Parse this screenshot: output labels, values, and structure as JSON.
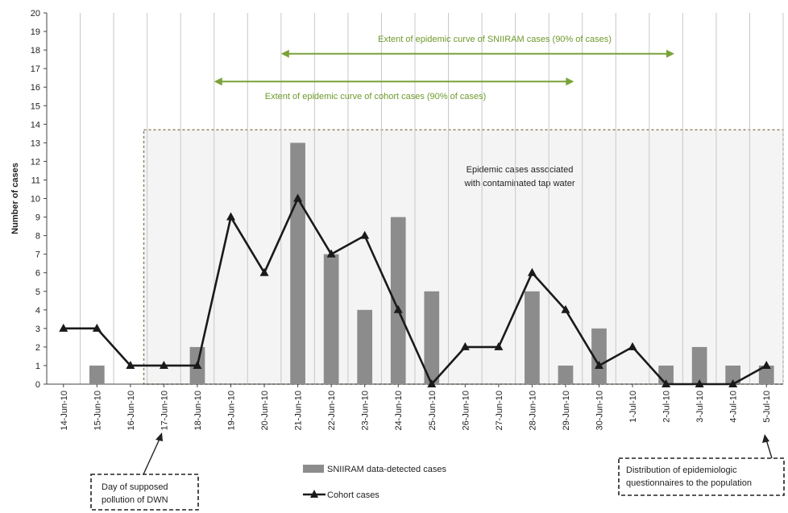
{
  "chart_data": {
    "type": "bar",
    "ylabel": "Number of cases",
    "ylim": [
      0,
      20
    ],
    "yticks": [
      "0",
      "1",
      "2",
      "3",
      "4",
      "5",
      "6",
      "7",
      "8",
      "9",
      "10",
      "11",
      "12",
      "13",
      "14",
      "15",
      "16",
      "17",
      "18",
      "19",
      "20"
    ],
    "categories": [
      "14-Jun-10",
      "15-Jun-10",
      "16-Jun-10",
      "17-Jun-10",
      "18-Jun-10",
      "19-Jun-10",
      "20-Jun-10",
      "21-Jun-10",
      "22-Jun-10",
      "23-Jun-10",
      "24-Jun-10",
      "25-Jun-10",
      "26-Jun-10",
      "27-Jun-10",
      "28-Jun-10",
      "29-Jun-10",
      "30-Jun-10",
      "1-Jul-10",
      "2-Jul-10",
      "3-Jul-10",
      "4-Jul-10",
      "5-Jul-10"
    ],
    "grid": "vertical",
    "series": [
      {
        "name": "SNIIRAM data-detected cases",
        "kind": "bar",
        "color": "#8c8c8c",
        "values": [
          0,
          1,
          0,
          0,
          2,
          0,
          0,
          13,
          7,
          4,
          9,
          5,
          0,
          0,
          5,
          1,
          3,
          0,
          1,
          2,
          1,
          1
        ]
      },
      {
        "name": "Cohort cases",
        "kind": "line",
        "color": "#1a1a1a",
        "values": [
          3,
          3,
          1,
          1,
          1,
          9,
          6,
          10,
          7,
          8,
          4,
          0,
          2,
          2,
          6,
          4,
          1,
          2,
          0,
          0,
          0,
          1
        ]
      }
    ],
    "ranges": [
      {
        "label": "Extent of epidemic curve of SNIIRAM cases (90% of cases)",
        "from": "20-Jun-10",
        "to": "2-Jul-10",
        "y": 17.8,
        "color": "#7aa23a"
      },
      {
        "label": "Extent of epidemic curve of cohort cases (90% of cases)",
        "from": "18-Jun-10",
        "to": "29-Jun-10",
        "y": 16.3,
        "color": "#7aa23a"
      }
    ],
    "region": {
      "label_line1": "Epidemic cases associated",
      "label_line2": "with contaminated tap water",
      "from": "16-Jun-10",
      "to": "5-Jul-10",
      "top": 13.7
    },
    "annotations": [
      {
        "line1": "Day of supposed",
        "line2": "pollution of DWN",
        "at": "17-Jun-10"
      },
      {
        "line1": "Distribution of epidemiologic",
        "line2": "questionnaires to the population",
        "at": "5-Jul-10"
      }
    ],
    "legend_position": "bottom-center"
  }
}
